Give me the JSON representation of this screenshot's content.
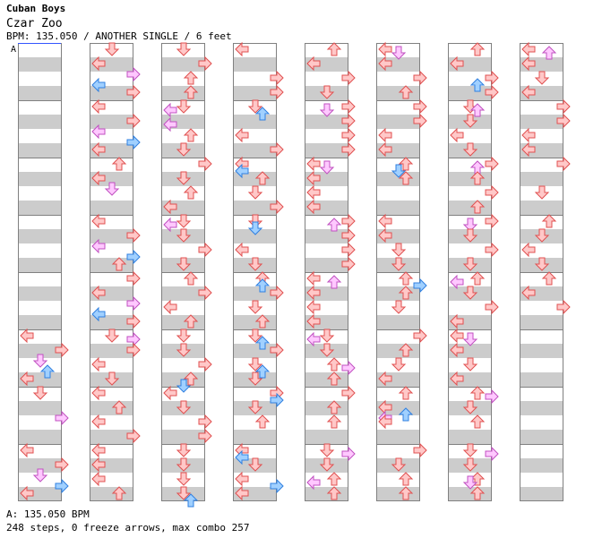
{
  "header": {
    "artist": "Cuban Boys",
    "title": "Czar Zoo",
    "info": "BPM: 135.050 / ANOTHER SINGLE / 6 feet"
  },
  "chart": {
    "bpm_marker": "A",
    "columns": 8,
    "measures_per_column": 8
  },
  "footer": {
    "bpm_list": "A: 135.050 BPM",
    "stats": "248 steps, 0 freeze arrows, max combo 257"
  },
  "colors": {
    "red_fill": "#ffc8c8",
    "red_stroke": "#e05050",
    "pink_fill": "#ffc8ff",
    "pink_stroke": "#c050c0",
    "blue_fill": "#a0d0ff",
    "blue_stroke": "#3080e0",
    "stripe": "#cccccc",
    "border": "#808080",
    "marker_line": "#3355ff"
  }
}
